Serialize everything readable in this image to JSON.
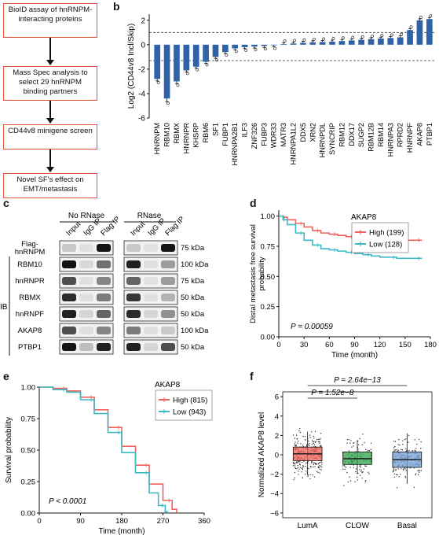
{
  "panel_a": {
    "label": "a",
    "steps": [
      "BioID assay of hnRNPM-interacting proteins",
      "Mass Spec analysis to select 29 hnRNPM binding partners",
      "CD44v8 minigene screen",
      "Novel SF's effect on EMT/metastasis"
    ]
  },
  "panel_b": {
    "label": "b"
  },
  "panel_c": {
    "label": "c",
    "group_no_rnase": "No RNase",
    "group_rnase": "RNase",
    "lanes": [
      "Input",
      "IgG IP",
      "Flag IP"
    ],
    "rows": [
      {
        "name": "Flag-\nhnRNPM",
        "kda": "75 kDa"
      },
      {
        "name": "RBM10",
        "kda": "100 kDa"
      },
      {
        "name": "hnRNPR",
        "kda": "75 kDa"
      },
      {
        "name": "RBMX",
        "kda": "50 kDa"
      },
      {
        "name": "hnRNPF",
        "kda": "50 kDa"
      },
      {
        "name": "AKAP8",
        "kda": "100 kDa"
      },
      {
        "name": "PTBP1",
        "kda": "50 kDa"
      }
    ],
    "ib_label": "IB",
    "row_label_1a": "Flag-",
    "row_label_1b": "hnRNPM"
  },
  "panel_d": {
    "label": "d"
  },
  "panel_e": {
    "label": "e"
  },
  "panel_f": {
    "label": "f"
  },
  "chart_data": [
    {
      "panel": "b",
      "type": "bar",
      "ylabel": "Log2 (CD44v8 Incl/Skip)",
      "ylim": [
        -6,
        2.5
      ],
      "yticks": [
        2,
        0,
        -2,
        -4,
        -6
      ],
      "reference_lines": [
        1,
        -1.3
      ],
      "categories": [
        "HNRNPM",
        "RBM10",
        "RBMX",
        "HNRNPR",
        "KHSRP",
        "RBM6",
        "SF1",
        "FUBP1",
        "HNRNPA2B1",
        "ILF3",
        "ZNF326",
        "FUBP3",
        "WDR33",
        "MATR3",
        "HNRNPA1L2",
        "DDX5",
        "XRN2",
        "HNRNPDL",
        "SYNCRIP",
        "RBM12",
        "DDX17",
        "SUGP2",
        "RBM12B",
        "RBM14",
        "HNRNPA3",
        "RPRD2",
        "HNRNPF",
        "AKAP8",
        "PTBP1"
      ],
      "values": [
        -2.8,
        -4.4,
        -3.0,
        -2.1,
        -1.8,
        -1.4,
        -1.0,
        -0.6,
        -0.3,
        -0.2,
        -0.15,
        -0.1,
        -0.05,
        0.05,
        0.1,
        0.15,
        0.2,
        0.22,
        0.25,
        0.3,
        0.35,
        0.4,
        0.45,
        0.5,
        0.55,
        0.6,
        1.2,
        2.0,
        2.1
      ],
      "color": "#2f62a6"
    },
    {
      "panel": "d",
      "type": "line",
      "xlabel": "Time (month)",
      "ylabel": "Distal metastasis free survival probability",
      "xticks": [
        0,
        30,
        60,
        90,
        120,
        150,
        180
      ],
      "yticks": [
        0.0,
        0.25,
        0.5,
        0.75,
        1.0
      ],
      "xlim": [
        0,
        180
      ],
      "ylim": [
        0,
        1.05
      ],
      "legend_title": "AKAP8",
      "annotation": "P = 0.00059",
      "series": [
        {
          "name": "High (199)",
          "color": "#f0625b",
          "x": [
            0,
            5,
            10,
            20,
            30,
            40,
            50,
            60,
            70,
            80,
            90,
            100,
            110,
            120,
            140,
            160,
            170
          ],
          "y": [
            1.0,
            0.99,
            0.97,
            0.94,
            0.91,
            0.88,
            0.86,
            0.85,
            0.84,
            0.83,
            0.82,
            0.82,
            0.81,
            0.81,
            0.8,
            0.8,
            0.8
          ]
        },
        {
          "name": "Low (128)",
          "color": "#3bbac4",
          "x": [
            0,
            5,
            10,
            20,
            30,
            40,
            50,
            60,
            70,
            80,
            90,
            100,
            110,
            120,
            140,
            160,
            170
          ],
          "y": [
            1.0,
            0.97,
            0.93,
            0.86,
            0.8,
            0.76,
            0.73,
            0.72,
            0.71,
            0.7,
            0.69,
            0.68,
            0.67,
            0.66,
            0.65,
            0.65,
            0.65
          ]
        }
      ]
    },
    {
      "panel": "e",
      "type": "line",
      "xlabel": "Time (month)",
      "ylabel": "Survival probability",
      "xticks": [
        0,
        90,
        180,
        270,
        360
      ],
      "yticks": [
        0.0,
        0.25,
        0.5,
        0.75,
        1.0
      ],
      "xlim": [
        0,
        360
      ],
      "ylim": [
        0,
        1.0
      ],
      "legend_title": "AKAP8",
      "annotation": "P < 0.0001",
      "series": [
        {
          "name": "High (815)",
          "color": "#f0625b",
          "x": [
            0,
            30,
            60,
            90,
            120,
            150,
            180,
            210,
            240,
            270,
            290,
            300
          ],
          "y": [
            1.0,
            0.99,
            0.97,
            0.92,
            0.82,
            0.68,
            0.53,
            0.38,
            0.23,
            0.1,
            0.03,
            0.0
          ]
        },
        {
          "name": "Low (943)",
          "color": "#3bbac4",
          "x": [
            0,
            30,
            60,
            90,
            120,
            150,
            180,
            210,
            240,
            260,
            275,
            280
          ],
          "y": [
            1.0,
            0.98,
            0.96,
            0.9,
            0.79,
            0.64,
            0.48,
            0.32,
            0.16,
            0.06,
            0.01,
            0.0
          ]
        }
      ]
    },
    {
      "panel": "f",
      "type": "box",
      "ylabel": "Normalized AKAP8 level",
      "yticks": [
        6,
        4,
        2,
        0,
        -2,
        -4,
        -6
      ],
      "ylim": [
        -6.5,
        6.5
      ],
      "categories": [
        "LumA",
        "CLOW",
        "Basal"
      ],
      "colors": [
        "#f0625b",
        "#2ea24a",
        "#6f9bd1"
      ],
      "medians": [
        0.1,
        -0.4,
        -0.5
      ],
      "q1": [
        -0.6,
        -1.0,
        -1.3
      ],
      "q3": [
        0.8,
        0.3,
        0.3
      ],
      "whisker_low": [
        -2.1,
        -2.0,
        -3.0
      ],
      "whisker_high": [
        2.4,
        1.5,
        2.2
      ],
      "comparisons": [
        {
          "text": "P = 1.52e−8"
        },
        {
          "text": "P = 2.64e−13"
        }
      ]
    }
  ]
}
